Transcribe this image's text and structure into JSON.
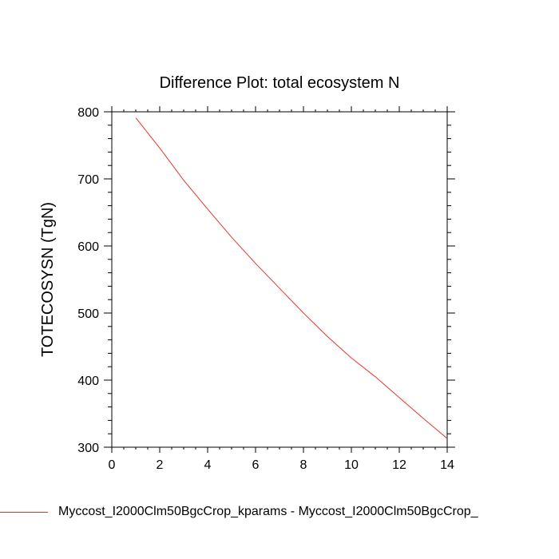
{
  "chart_data": {
    "type": "line",
    "title": "Difference Plot: total ecosystem N",
    "xlabel": "",
    "ylabel": "TOTECOSYSN  (TgN)",
    "xlim": [
      0,
      14
    ],
    "ylim": [
      300,
      800
    ],
    "x_ticks": [
      0,
      2,
      4,
      6,
      8,
      10,
      12,
      14
    ],
    "y_ticks": [
      300,
      400,
      500,
      600,
      700,
      800
    ],
    "grid": false,
    "legend_position": "bottom",
    "series": [
      {
        "name": "Myccost_I2000Clm50BgcCrop_kparams - Myccost_I2000Clm50BgcCrop_",
        "color": "#e8352b",
        "x": [
          1,
          2,
          3,
          4,
          5,
          6,
          7,
          8,
          9,
          10,
          11,
          12,
          13,
          14
        ],
        "y": [
          791,
          746,
          698,
          655,
          613,
          574,
          537,
          500,
          465,
          433,
          405,
          374,
          343,
          313
        ]
      }
    ]
  }
}
